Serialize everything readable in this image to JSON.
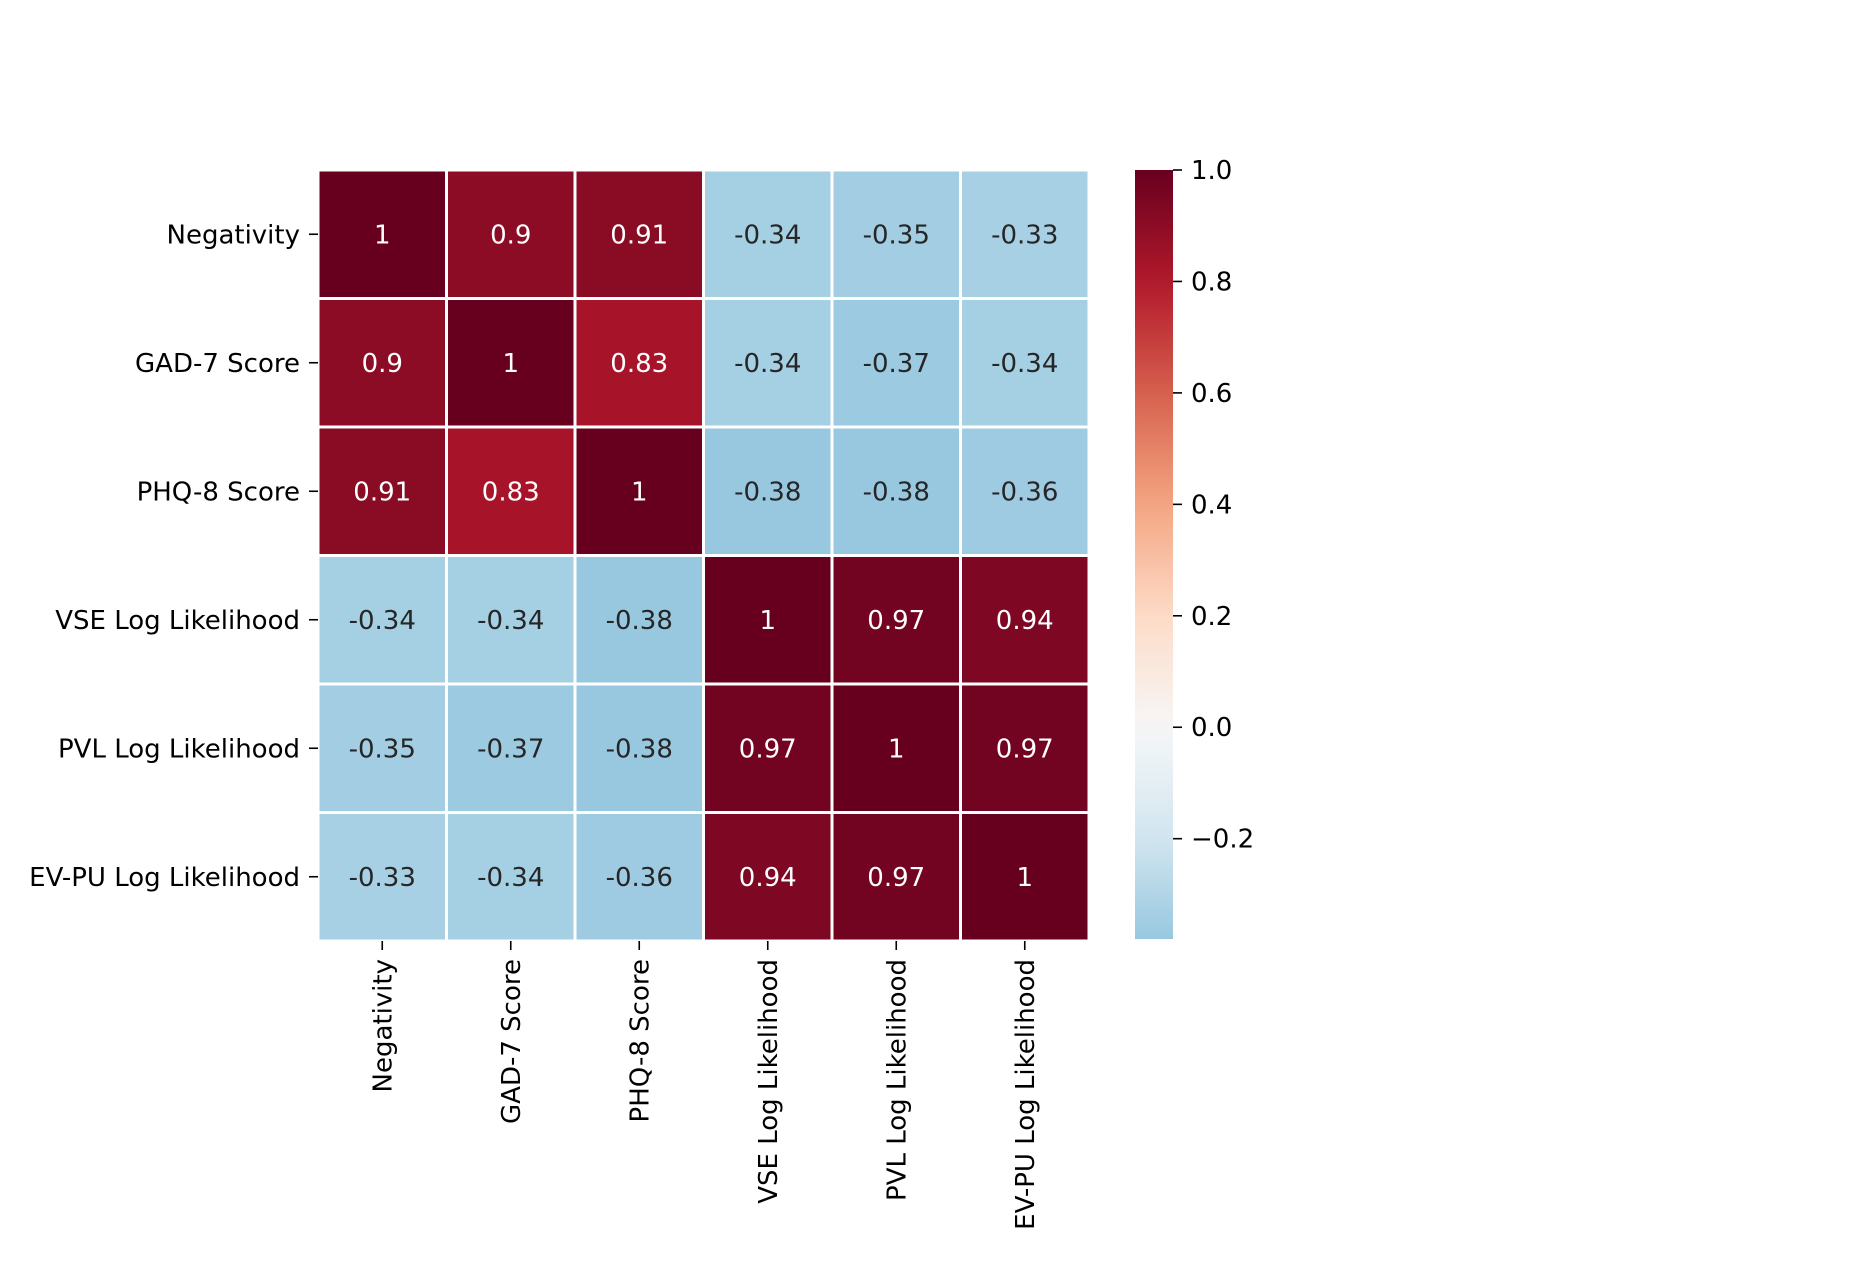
{
  "chart_data": {
    "type": "heatmap",
    "title": "",
    "xlabel": "",
    "ylabel": "",
    "row_labels": [
      "Negativity",
      "GAD-7 Score",
      "PHQ-8 Score",
      "VSE Log Likelihood",
      "PVL Log Likelihood",
      "EV-PU Log Likelihood"
    ],
    "col_labels": [
      "Negativity",
      "GAD-7 Score",
      "PHQ-8 Score",
      "VSE Log Likelihood",
      "PVL Log Likelihood",
      "EV-PU Log Likelihood"
    ],
    "values": [
      [
        1,
        0.9,
        0.91,
        -0.34,
        -0.35,
        -0.33
      ],
      [
        0.9,
        1,
        0.83,
        -0.34,
        -0.37,
        -0.34
      ],
      [
        0.91,
        0.83,
        1,
        -0.38,
        -0.38,
        -0.36
      ],
      [
        -0.34,
        -0.34,
        -0.38,
        1,
        0.97,
        0.94
      ],
      [
        -0.35,
        -0.37,
        -0.38,
        0.97,
        1,
        0.97
      ],
      [
        -0.33,
        -0.34,
        -0.36,
        0.94,
        0.97,
        1
      ]
    ],
    "value_labels": [
      [
        "1",
        "0.9",
        "0.91",
        "-0.34",
        "-0.35",
        "-0.33"
      ],
      [
        "0.9",
        "1",
        "0.83",
        "-0.34",
        "-0.37",
        "-0.34"
      ],
      [
        "0.91",
        "0.83",
        "1",
        "-0.38",
        "-0.38",
        "-0.36"
      ],
      [
        "-0.34",
        "-0.34",
        "-0.38",
        "1",
        "0.97",
        "0.94"
      ],
      [
        "-0.35",
        "-0.37",
        "-0.38",
        "0.97",
        "1",
        "0.97"
      ],
      [
        "-0.33",
        "-0.34",
        "-0.36",
        "0.94",
        "0.97",
        "1"
      ]
    ],
    "colormap": "RdBu_r",
    "center": 0,
    "colorbar": {
      "range": [
        -0.38,
        1.0
      ],
      "ticks": [
        1.0,
        0.8,
        0.6,
        0.4,
        0.2,
        0.0,
        -0.2
      ],
      "tick_labels": [
        "1.0",
        "0.8",
        "0.6",
        "0.4",
        "0.2",
        "0.0",
        "−0.2"
      ],
      "placement": "right"
    },
    "grid": true,
    "grid_color": "#ffffff"
  }
}
